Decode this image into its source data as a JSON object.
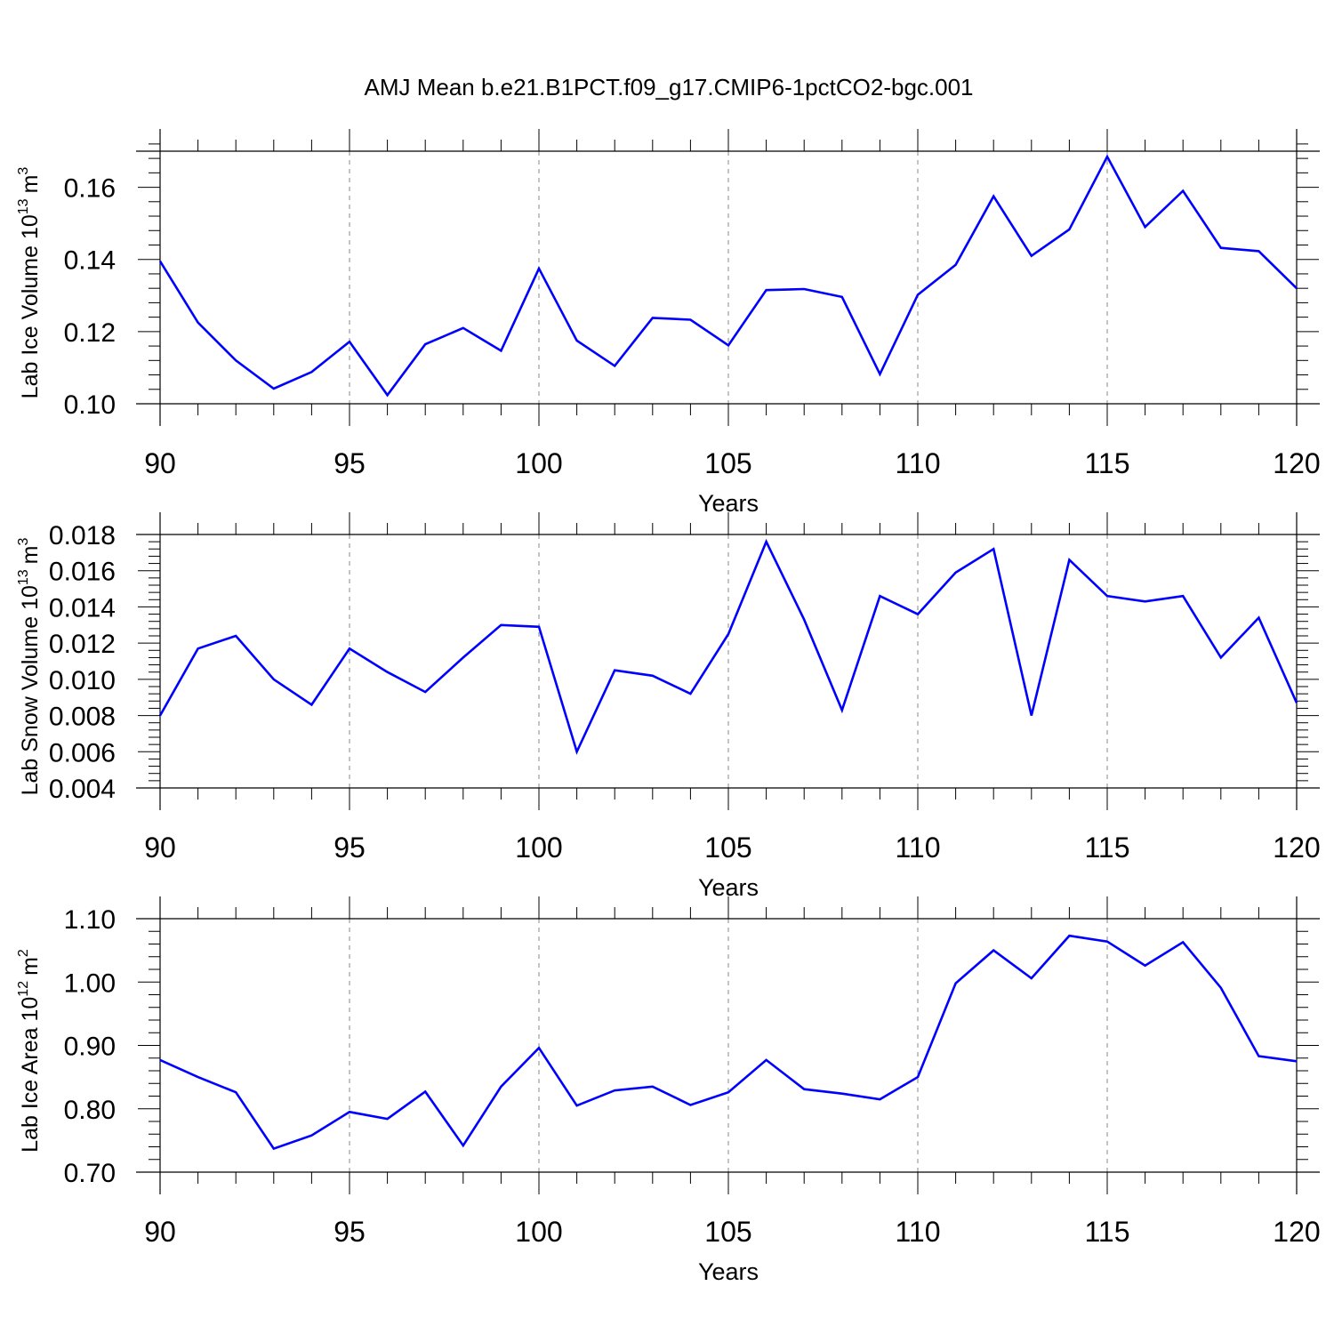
{
  "title": "AMJ Mean b.e21.B1PCT.f09_g17.CMIP6-1pctCO2-bgc.001",
  "line_color": "#0000ff",
  "chart_data": [
    {
      "type": "line",
      "xlabel": "Years",
      "ylabel": "Lab Ice Volume 10",
      "ylabel_exp": "13",
      "ylabel_unit": "m",
      "ylabel_unit_exp": "3",
      "xlim": [
        90,
        120
      ],
      "ylim": [
        0.1,
        0.17
      ],
      "xticks": [
        90,
        95,
        100,
        105,
        110,
        115,
        120
      ],
      "xtick_labels": [
        "90",
        "95",
        "100",
        "105",
        "110",
        "115",
        "120"
      ],
      "yticks": [
        0.1,
        0.12,
        0.14,
        0.16
      ],
      "ytick_labels": [
        "0.10",
        "0.12",
        "0.14",
        "0.16"
      ],
      "x": [
        90,
        91,
        92,
        93,
        94,
        95,
        96,
        97,
        98,
        99,
        100,
        101,
        102,
        103,
        104,
        105,
        106,
        107,
        108,
        109,
        110,
        111,
        112,
        113,
        114,
        115,
        116,
        117,
        118,
        119,
        120
      ],
      "series": [
        {
          "values": [
            0.1395,
            0.1225,
            0.112,
            0.1042,
            0.1088,
            0.1172,
            0.1024,
            0.1165,
            0.121,
            0.1147,
            0.1375,
            0.1175,
            0.1105,
            0.1238,
            0.1233,
            0.1162,
            0.1315,
            0.1318,
            0.1296,
            0.1082,
            0.1302,
            0.1385,
            0.1575,
            0.141,
            0.1483,
            0.1685,
            0.149,
            0.159,
            0.1432,
            0.1423,
            0.132
          ]
        }
      ]
    },
    {
      "type": "line",
      "xlabel": "Years",
      "ylabel": "Lab Snow Volume 10",
      "ylabel_exp": "13",
      "ylabel_unit": "m",
      "ylabel_unit_exp": "3",
      "xlim": [
        90,
        120
      ],
      "ylim": [
        0.004,
        0.018
      ],
      "xticks": [
        90,
        95,
        100,
        105,
        110,
        115,
        120
      ],
      "xtick_labels": [
        "90",
        "95",
        "100",
        "105",
        "110",
        "115",
        "120"
      ],
      "yticks": [
        0.004,
        0.006,
        0.008,
        0.01,
        0.012,
        0.014,
        0.016,
        0.018
      ],
      "ytick_labels": [
        "0.004",
        "0.006",
        "0.008",
        "0.010",
        "0.012",
        "0.014",
        "0.016",
        "0.018"
      ],
      "x": [
        90,
        91,
        92,
        93,
        94,
        95,
        96,
        97,
        98,
        99,
        100,
        101,
        102,
        103,
        104,
        105,
        106,
        107,
        108,
        109,
        110,
        111,
        112,
        113,
        114,
        115,
        116,
        117,
        118,
        119,
        120
      ],
      "series": [
        {
          "values": [
            0.008,
            0.0117,
            0.0124,
            0.01,
            0.0086,
            0.0117,
            0.0104,
            0.0093,
            0.0112,
            0.013,
            0.0129,
            0.006,
            0.0105,
            0.0102,
            0.0092,
            0.0125,
            0.0176,
            0.0133,
            0.0083,
            0.0146,
            0.0136,
            0.0159,
            0.0172,
            0.008,
            0.0166,
            0.0146,
            0.0143,
            0.0146,
            0.0112,
            0.0134,
            0.0087
          ]
        }
      ]
    },
    {
      "type": "line",
      "xlabel": "Years",
      "ylabel": "Lab Ice Area 10",
      "ylabel_exp": "12",
      "ylabel_unit": "m",
      "ylabel_unit_exp": "2",
      "xlim": [
        90,
        120
      ],
      "ylim": [
        0.7,
        1.1
      ],
      "xticks": [
        90,
        95,
        100,
        105,
        110,
        115,
        120
      ],
      "xtick_labels": [
        "90",
        "95",
        "100",
        "105",
        "110",
        "115",
        "120"
      ],
      "yticks": [
        0.7,
        0.8,
        0.9,
        1.0,
        1.1
      ],
      "ytick_labels": [
        "0.70",
        "0.80",
        "0.90",
        "1.00",
        "1.10"
      ],
      "x": [
        90,
        91,
        92,
        93,
        94,
        95,
        96,
        97,
        98,
        99,
        100,
        101,
        102,
        103,
        104,
        105,
        106,
        107,
        108,
        109,
        110,
        111,
        112,
        113,
        114,
        115,
        116,
        117,
        118,
        119,
        120
      ],
      "series": [
        {
          "values": [
            0.877,
            0.85,
            0.826,
            0.737,
            0.758,
            0.795,
            0.784,
            0.827,
            0.742,
            0.835,
            0.896,
            0.805,
            0.829,
            0.835,
            0.806,
            0.826,
            0.877,
            0.831,
            0.824,
            0.815,
            0.85,
            0.998,
            1.05,
            1.006,
            1.073,
            1.064,
            1.026,
            1.063,
            0.991,
            0.883,
            0.875
          ]
        }
      ]
    }
  ]
}
